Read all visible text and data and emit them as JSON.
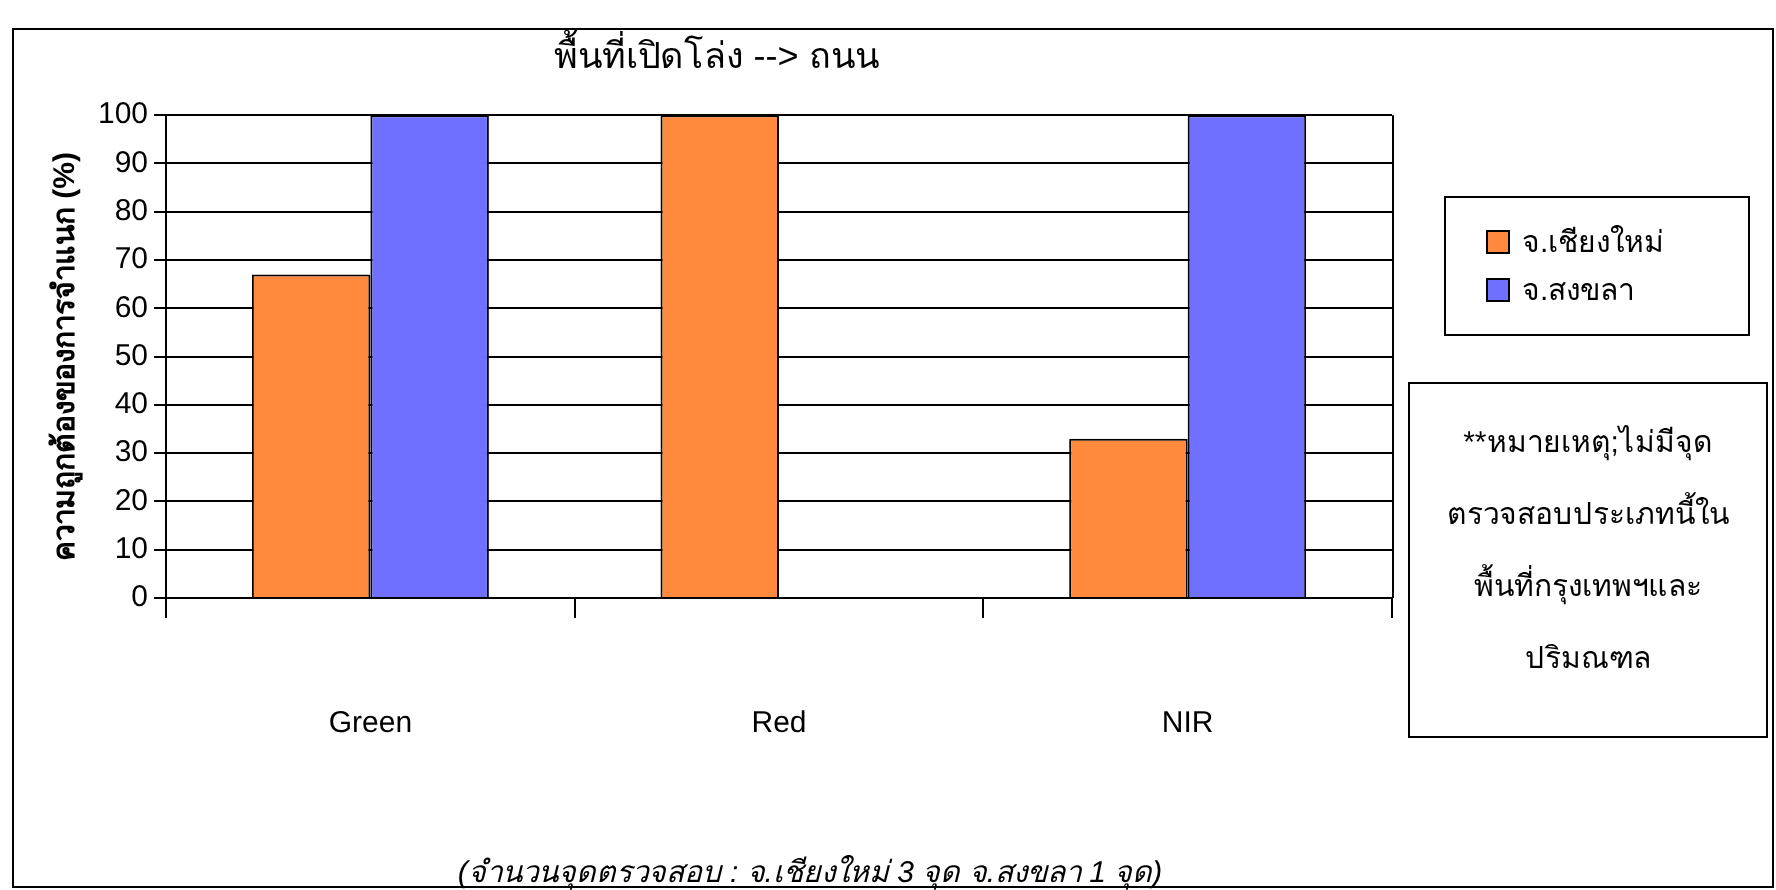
{
  "chart_data": {
    "type": "bar",
    "title": "พื้นที่เปิดโล่ง --> ถนน",
    "ylabel": "ความถูกต้องของการจำแนก (%)",
    "categories": [
      "Green",
      "Red",
      "NIR"
    ],
    "series": [
      {
        "name": "จ.เชียงใหม่",
        "color": "#ff8a3d",
        "values": [
          67,
          100,
          33
        ]
      },
      {
        "name": "จ.สงขลา",
        "color": "#7070ff",
        "values": [
          100,
          null,
          100
        ]
      }
    ],
    "ylim": [
      0,
      100
    ],
    "yticks": [
      0,
      10,
      20,
      30,
      40,
      50,
      60,
      70,
      80,
      90,
      100
    ],
    "grid": "y",
    "legend": "right",
    "annotations": [
      "**หมายเหตุ;ไม่มีจุดตรวจสอบประเภทนี้ในพื้นที่กรุงเทพฯและปริมณฑล",
      "(จำนวนจุดตรวจสอบ : จ.เชียงใหม่ 3 จุด  จ.สงขลา 1 จุด)"
    ]
  }
}
